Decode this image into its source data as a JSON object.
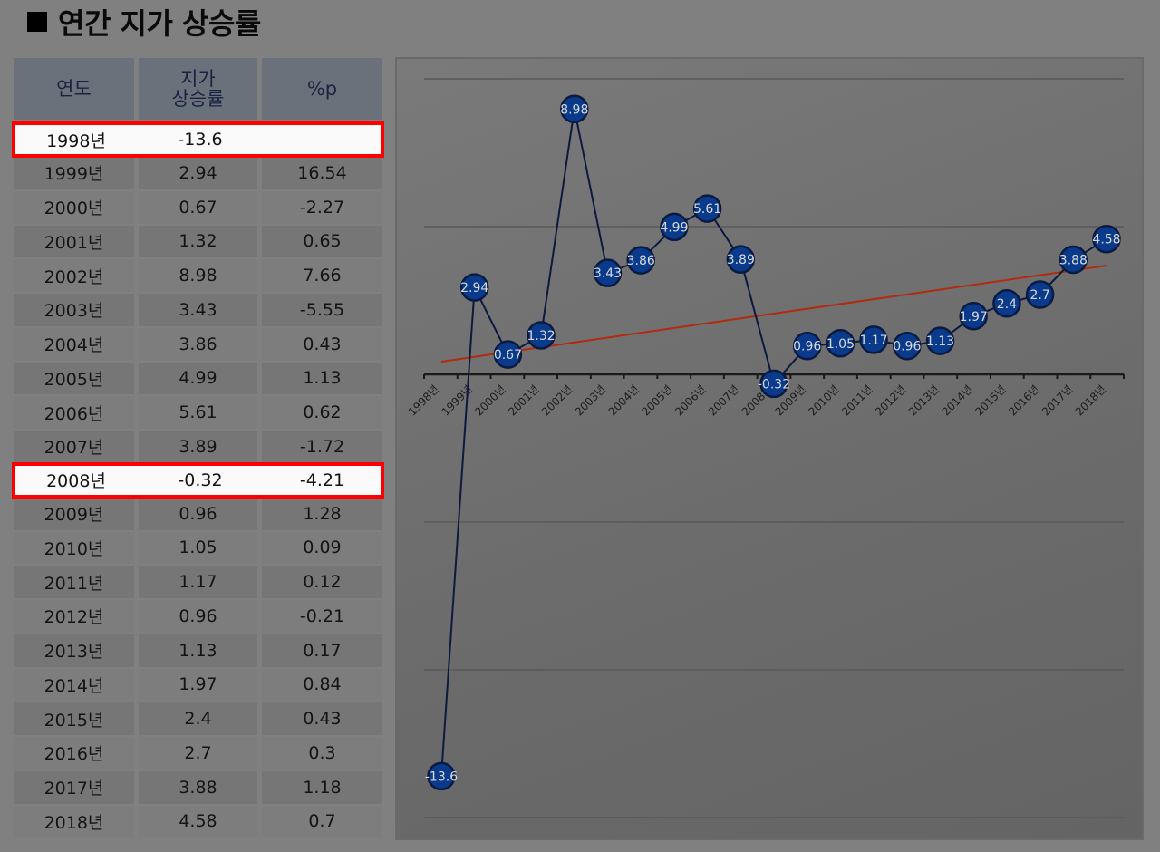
{
  "title": "연간 지가 상승률",
  "table": {
    "headers": [
      "연도",
      "지가\n상승률",
      "%p"
    ],
    "header_year": "연도",
    "header_rate_line1": "지가",
    "header_rate_line2": "상승률",
    "header_pp": "%p",
    "rows": [
      {
        "year": "1998년",
        "rate": "-13.6",
        "pp": "",
        "highlight": true
      },
      {
        "year": "1999년",
        "rate": "2.94",
        "pp": "16.54"
      },
      {
        "year": "2000년",
        "rate": "0.67",
        "pp": "-2.27"
      },
      {
        "year": "2001년",
        "rate": "1.32",
        "pp": "0.65"
      },
      {
        "year": "2002년",
        "rate": "8.98",
        "pp": "7.66"
      },
      {
        "year": "2003년",
        "rate": "3.43",
        "pp": "-5.55"
      },
      {
        "year": "2004년",
        "rate": "3.86",
        "pp": "0.43"
      },
      {
        "year": "2005년",
        "rate": "4.99",
        "pp": "1.13"
      },
      {
        "year": "2006년",
        "rate": "5.61",
        "pp": "0.62"
      },
      {
        "year": "2007년",
        "rate": "3.89",
        "pp": "-1.72"
      },
      {
        "year": "2008년",
        "rate": "-0.32",
        "pp": "-4.21",
        "highlight": true
      },
      {
        "year": "2009년",
        "rate": "0.96",
        "pp": "1.28"
      },
      {
        "year": "2010년",
        "rate": "1.05",
        "pp": "0.09"
      },
      {
        "year": "2011년",
        "rate": "1.17",
        "pp": "0.12"
      },
      {
        "year": "2012년",
        "rate": "0.96",
        "pp": "-0.21"
      },
      {
        "year": "2013년",
        "rate": "1.13",
        "pp": "0.17"
      },
      {
        "year": "2014년",
        "rate": "1.97",
        "pp": "0.84"
      },
      {
        "year": "2015년",
        "rate": "2.4",
        "pp": "0.43"
      },
      {
        "year": "2016년",
        "rate": "2.7",
        "pp": "0.3"
      },
      {
        "year": "2017년",
        "rate": "3.88",
        "pp": "1.18"
      },
      {
        "year": "2018년",
        "rate": "4.58",
        "pp": "0.7"
      }
    ]
  },
  "colors": {
    "highlight_border": "#ff0000",
    "marker_fill": "#0a3a8c",
    "marker_stroke": "#0a1a40",
    "line": "#0d1a40",
    "trendline": "#b22a10",
    "label_text": "#d8d8d8"
  },
  "chart_data": {
    "type": "line",
    "title": "연간 지가 상승률",
    "xlabel": "",
    "ylabel": "",
    "categories": [
      "1998년",
      "1999년",
      "2000년",
      "2001년",
      "2002년",
      "2003년",
      "2004년",
      "2005년",
      "2006년",
      "2007년",
      "2008년",
      "2009년",
      "2010년",
      "2011년",
      "2012년",
      "2013년",
      "2014년",
      "2015년",
      "2016년",
      "2017년",
      "2018년"
    ],
    "series": [
      {
        "name": "지가 상승률",
        "values": [
          -13.6,
          2.94,
          0.67,
          1.32,
          8.98,
          3.43,
          3.86,
          4.99,
          5.61,
          3.89,
          -0.32,
          0.96,
          1.05,
          1.17,
          0.96,
          1.13,
          1.97,
          2.4,
          2.7,
          3.88,
          4.58
        ],
        "data_labels": true,
        "marker": "circle"
      },
      {
        "name": "선형 추세선",
        "type": "trendline",
        "start": 0.4,
        "end": 3.7
      }
    ],
    "ylim": [
      -15,
      10
    ],
    "gridlines": [
      10,
      5,
      0,
      -5,
      -10,
      -15
    ],
    "grid": true,
    "legend": false
  }
}
